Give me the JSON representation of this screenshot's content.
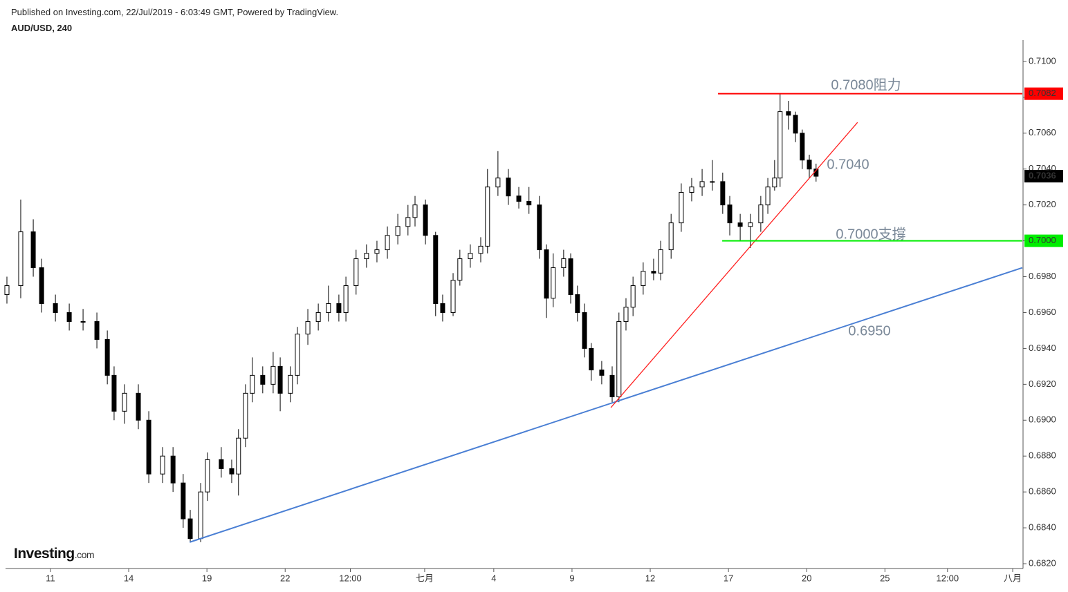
{
  "header": {
    "published": "Published on Investing.com, 22/Jul/2019 - 6:03:49 GMT, Powered by TradingView.",
    "symbol": "AUD/USD, 240"
  },
  "logo": {
    "brand": "Investing",
    "suffix": ".com"
  },
  "chart_data": {
    "type": "candlestick",
    "x": [
      -0.67,
      -0.14,
      0.34,
      0.66,
      1.19,
      1.72,
      2.25,
      2.78,
      3.18,
      3.44,
      3.84,
      4.37,
      4.77,
      5.3,
      5.7,
      6.09,
      6.36,
      6.76,
      7.02,
      7.55,
      7.95,
      8.21,
      8.48,
      8.74,
      9.14,
      9.54,
      9.81,
      10.2,
      10.47,
      10.87,
      11.27,
      11.66,
      12.06,
      12.33,
      12.72,
      13.12,
      13.52,
      13.92,
      14.32,
      14.71,
      14.98,
      15.38,
      15.77,
      16.04,
      16.44,
      16.7,
      17.1,
      17.5,
      17.76,
      18.16,
      18.56,
      18.96,
      19.35,
      19.75,
      20.02,
      20.28,
      20.68,
      20.95,
      21.21,
      21.48,
      21.74,
      22.14,
      22.54,
      22.8,
      23.07,
      23.34,
      23.73,
      24.13,
      24.4,
      24.8,
      25.19,
      25.59,
      25.99,
      26.38,
      26.78,
      27.05,
      27.45,
      27.84,
      28.24,
      28.51,
      28.77,
      28.98,
      29.3,
      29.57,
      29.83,
      30.1,
      30.36
    ],
    "open": [
      0.697,
      0.6975,
      0.7005,
      0.6985,
      0.6965,
      0.696,
      0.6955,
      0.6955,
      0.6945,
      0.6925,
      0.6905,
      0.6915,
      0.69,
      0.687,
      0.688,
      0.6865,
      0.6845,
      0.6834,
      0.686,
      0.6878,
      0.6873,
      0.687,
      0.689,
      0.6915,
      0.6925,
      0.692,
      0.693,
      0.6915,
      0.6925,
      0.6948,
      0.6955,
      0.696,
      0.6965,
      0.696,
      0.6975,
      0.699,
      0.6993,
      0.6995,
      0.7003,
      0.7008,
      0.7013,
      0.702,
      0.7003,
      0.6965,
      0.696,
      0.6978,
      0.699,
      0.6993,
      0.6997,
      0.703,
      0.7035,
      0.7025,
      0.7022,
      0.702,
      0.6995,
      0.6968,
      0.6985,
      0.699,
      0.697,
      0.696,
      0.694,
      0.6928,
      0.6925,
      0.6913,
      0.6955,
      0.6963,
      0.6975,
      0.6983,
      0.6982,
      0.6995,
      0.701,
      0.7027,
      0.703,
      0.7033,
      0.7033,
      0.702,
      0.701,
      0.7008,
      0.701,
      0.702,
      0.703,
      0.7035,
      0.7072,
      0.707,
      0.706,
      0.7045,
      0.704
    ],
    "high": [
      0.698,
      0.7023,
      0.7012,
      0.699,
      0.697,
      0.6965,
      0.6962,
      0.696,
      0.695,
      0.693,
      0.692,
      0.692,
      0.6905,
      0.6885,
      0.6885,
      0.687,
      0.685,
      0.6865,
      0.6882,
      0.6885,
      0.6878,
      0.6895,
      0.692,
      0.6935,
      0.693,
      0.6938,
      0.6935,
      0.693,
      0.6952,
      0.6962,
      0.6965,
      0.6975,
      0.697,
      0.698,
      0.6995,
      0.6998,
      0.7,
      0.7008,
      0.7015,
      0.702,
      0.7025,
      0.7023,
      0.7005,
      0.697,
      0.6982,
      0.6995,
      0.6998,
      0.7002,
      0.704,
      0.705,
      0.704,
      0.703,
      0.703,
      0.7025,
      0.6998,
      0.6993,
      0.6995,
      0.6993,
      0.6975,
      0.6965,
      0.6943,
      0.6933,
      0.693,
      0.696,
      0.6968,
      0.698,
      0.6988,
      0.699,
      0.7,
      0.7015,
      0.7032,
      0.7035,
      0.704,
      0.7045,
      0.7038,
      0.7025,
      0.7015,
      0.7015,
      0.7025,
      0.7035,
      0.7045,
      0.7082,
      0.7078,
      0.7072,
      0.7062,
      0.7048,
      0.7043
    ],
    "low": [
      0.6965,
      0.6968,
      0.698,
      0.696,
      0.6955,
      0.695,
      0.695,
      0.694,
      0.692,
      0.69,
      0.6898,
      0.6895,
      0.6865,
      0.6865,
      0.686,
      0.684,
      0.6832,
      0.6832,
      0.6855,
      0.6868,
      0.6865,
      0.6858,
      0.6885,
      0.691,
      0.6915,
      0.6915,
      0.6905,
      0.691,
      0.692,
      0.6942,
      0.695,
      0.6955,
      0.6955,
      0.6955,
      0.697,
      0.6985,
      0.6988,
      0.699,
      0.6998,
      0.7003,
      0.7008,
      0.6998,
      0.6958,
      0.6955,
      0.6958,
      0.6975,
      0.6985,
      0.6988,
      0.6993,
      0.7025,
      0.702,
      0.7018,
      0.7015,
      0.699,
      0.6957,
      0.6963,
      0.698,
      0.6965,
      0.6955,
      0.6935,
      0.6922,
      0.692,
      0.691,
      0.691,
      0.695,
      0.6958,
      0.697,
      0.6978,
      0.6978,
      0.699,
      0.7005,
      0.7022,
      0.7025,
      0.7028,
      0.7015,
      0.7003,
      0.7,
      0.6996,
      0.7005,
      0.7015,
      0.7028,
      0.703,
      0.7062,
      0.7055,
      0.704,
      0.7035,
      0.7033
    ],
    "close": [
      0.6975,
      0.7005,
      0.6985,
      0.6965,
      0.696,
      0.6955,
      0.6955,
      0.6945,
      0.6925,
      0.6905,
      0.6915,
      0.69,
      0.687,
      0.688,
      0.6865,
      0.6845,
      0.6834,
      0.686,
      0.6878,
      0.6873,
      0.687,
      0.689,
      0.6915,
      0.6925,
      0.692,
      0.693,
      0.6915,
      0.6925,
      0.6948,
      0.6955,
      0.696,
      0.6965,
      0.696,
      0.6975,
      0.699,
      0.6993,
      0.6995,
      0.7003,
      0.7008,
      0.7013,
      0.702,
      0.7003,
      0.6965,
      0.696,
      0.6978,
      0.699,
      0.6993,
      0.6997,
      0.703,
      0.7035,
      0.7025,
      0.7022,
      0.702,
      0.6995,
      0.6968,
      0.6985,
      0.699,
      0.697,
      0.696,
      0.694,
      0.6928,
      0.6925,
      0.6913,
      0.6955,
      0.6963,
      0.6975,
      0.6983,
      0.6982,
      0.6995,
      0.701,
      0.7027,
      0.703,
      0.7033,
      0.7033,
      0.702,
      0.701,
      0.7008,
      0.701,
      0.702,
      0.703,
      0.7035,
      0.7072,
      0.707,
      0.706,
      0.7045,
      0.704,
      0.7036
    ],
    "up_color": "#ffffff",
    "down_color": "#000000",
    "wick_color": "#000000",
    "xlim": [
      -0.67,
      38.27
    ],
    "ylim": [
      0.68177,
      0.71119
    ],
    "xticks": [
      {
        "value": 1,
        "label": "11"
      },
      {
        "value": 4,
        "label": "14"
      },
      {
        "value": 7,
        "label": "19"
      },
      {
        "value": 10,
        "label": "22"
      },
      {
        "value": 12.5,
        "label": "12:00"
      },
      {
        "value": 15.35,
        "label": "七月"
      },
      {
        "value": 18,
        "label": "4"
      },
      {
        "value": 21,
        "label": "9"
      },
      {
        "value": 24,
        "label": "12"
      },
      {
        "value": 27,
        "label": "17"
      },
      {
        "value": 30,
        "label": "20"
      },
      {
        "value": 33,
        "label": "25"
      },
      {
        "value": 35.4,
        "label": "12:00"
      },
      {
        "value": 37.9,
        "label": "八月"
      }
    ],
    "yticks": [
      {
        "value": 0.682,
        "label": "0.6820"
      },
      {
        "value": 0.684,
        "label": "0.6840"
      },
      {
        "value": 0.686,
        "label": "0.6860"
      },
      {
        "value": 0.688,
        "label": "0.6880"
      },
      {
        "value": 0.69,
        "label": "0.6900"
      },
      {
        "value": 0.692,
        "label": "0.6920"
      },
      {
        "value": 0.694,
        "label": "0.6940"
      },
      {
        "value": 0.696,
        "label": "0.6960"
      },
      {
        "value": 0.698,
        "label": "0.6980"
      },
      {
        "value": 0.7,
        "label": "0.7000"
      },
      {
        "value": 0.702,
        "label": "0.7020"
      },
      {
        "value": 0.704,
        "label": "0.7040"
      },
      {
        "value": 0.706,
        "label": "0.7060"
      },
      {
        "value": 0.708,
        "label": "0.7080"
      },
      {
        "value": 0.71,
        "label": "0.7100"
      }
    ],
    "levels": [
      {
        "value": 0.7082,
        "x_start": 26.6,
        "color": "#ff0000"
      },
      {
        "value": 0.7,
        "label": "0.7000",
        "x_start": 26.76,
        "color": "#00ee00"
      }
    ],
    "trendlines": [
      {
        "x": [
          6.34,
          38.27
        ],
        "y": [
          0.6832,
          0.6985
        ],
        "color": "#4a7fd4"
      },
      {
        "x": [
          22.49,
          31.95
        ],
        "y": [
          0.6907,
          0.7066
        ],
        "color": "#ff2020"
      }
    ],
    "annotations": [
      "0.7080阻力",
      "0.7040",
      "0.7000支撐",
      "0.6950"
    ]
  }
}
